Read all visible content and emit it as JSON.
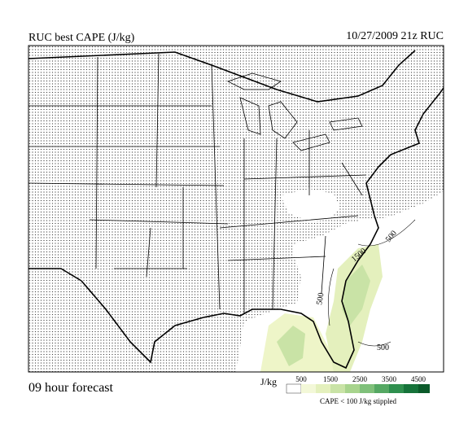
{
  "header": {
    "title": "RUC best CAPE (J/kg)",
    "valid": "10/27/2009  21z  RUC"
  },
  "footer": {
    "forecast": "09 hour forecast"
  },
  "legend": {
    "unit": "J/kg",
    "ticks": [
      500,
      1500,
      2500,
      3500,
      4500
    ],
    "note": "CAPE < 100 J/kg stippled"
  },
  "map": {
    "contour_labels": [
      "500",
      "1500",
      "500",
      "500"
    ]
  }
}
